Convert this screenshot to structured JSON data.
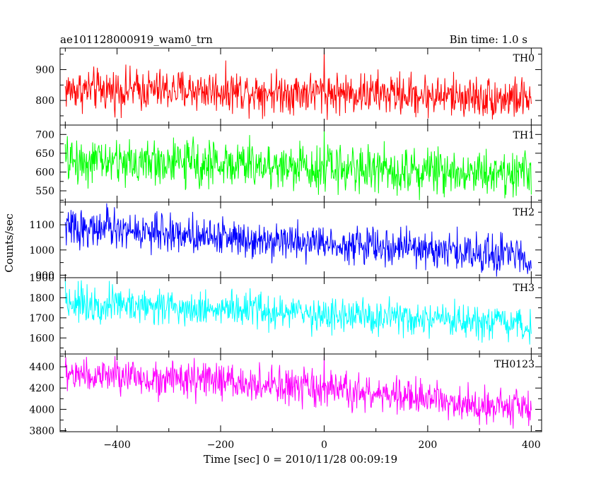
{
  "header": {
    "title": "ae101128000919_wam0_trn",
    "bin_time": "Bin time: 1.0 s"
  },
  "chart_data": {
    "type": "line",
    "title": "ae101128000919_wam0_trn",
    "subtitle": "Bin time: 1.0 s",
    "xlabel": "Time [sec] 0 = 2010/11/28 00:09:19",
    "ylabel": "Counts/sec",
    "xlim": [
      -510,
      420
    ],
    "x_ticks": [
      -400,
      -200,
      0,
      200,
      400
    ],
    "x_range_data": [
      -500,
      400
    ],
    "grid": false,
    "panels": [
      {
        "name": "TH0",
        "color": "#ff0000",
        "ylim": [
          720,
          970
        ],
        "y_ticks": [
          800,
          900
        ],
        "trend": [
          [
            -500,
            835
          ],
          [
            -200,
            832
          ],
          [
            100,
            822
          ],
          [
            400,
            805
          ]
        ],
        "noise": 42,
        "peak": {
          "x": 0,
          "y": 965
        }
      },
      {
        "name": "TH1",
        "color": "#00ff00",
        "ylim": [
          520,
          725
        ],
        "y_ticks": [
          550,
          600,
          650,
          700
        ],
        "trend": [
          [
            -500,
            630
          ],
          [
            -200,
            622
          ],
          [
            100,
            608
          ],
          [
            400,
            598
          ]
        ],
        "noise": 38,
        "peak": {
          "x": 0,
          "y": 712
        }
      },
      {
        "name": "TH2",
        "color": "#0000ff",
        "ylim": [
          890,
          1190
        ],
        "y_ticks": [
          900,
          1000,
          1100
        ],
        "trend": [
          [
            -500,
            1090
          ],
          [
            -200,
            1055
          ],
          [
            100,
            1015
          ],
          [
            400,
            975
          ]
        ],
        "noise": 45,
        "peak": {
          "x": -420,
          "y": 1185
        }
      },
      {
        "name": "TH3",
        "color": "#00ffff",
        "ylim": [
          1520,
          1900
        ],
        "y_ticks": [
          1600,
          1700,
          1800,
          1900
        ],
        "trend": [
          [
            -500,
            1780
          ],
          [
            -200,
            1745
          ],
          [
            100,
            1700
          ],
          [
            400,
            1655
          ]
        ],
        "noise": 55,
        "peak": {
          "x": -500,
          "y": 1895
        }
      },
      {
        "name": "TH0123",
        "color": "#ff00ff",
        "ylim": [
          3790,
          4520
        ],
        "y_ticks": [
          3800,
          4000,
          4200,
          4400
        ],
        "trend": [
          [
            -500,
            4330
          ],
          [
            -200,
            4260
          ],
          [
            100,
            4140
          ],
          [
            400,
            4010
          ]
        ],
        "noise": 105,
        "peak": {
          "x": 0,
          "y": 4510
        }
      }
    ]
  }
}
